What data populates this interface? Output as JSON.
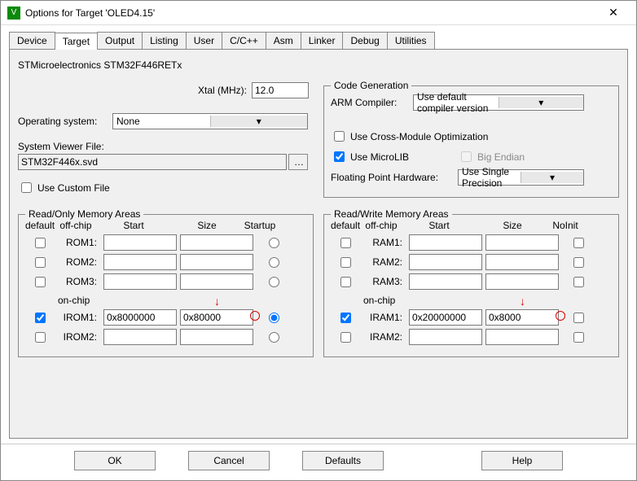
{
  "window": {
    "title": "Options for Target 'OLED4.15'"
  },
  "tabs": [
    "Device",
    "Target",
    "Output",
    "Listing",
    "User",
    "C/C++",
    "Asm",
    "Linker",
    "Debug",
    "Utilities"
  ],
  "activeTab": "Target",
  "device": "STMicroelectronics STM32F446RETx",
  "xtal": {
    "label": "Xtal (MHz):",
    "value": "12.0"
  },
  "os": {
    "label": "Operating system:",
    "value": "None"
  },
  "svd": {
    "label": "System Viewer File:",
    "value": "STM32F446x.svd",
    "useCustom": "Use Custom File"
  },
  "codegen": {
    "legend": "Code Generation",
    "compilerLabel": "ARM Compiler:",
    "compilerValue": "Use default compiler version",
    "crossOpt": "Use Cross-Module Optimization",
    "microlib": "Use MicroLIB",
    "bigEndian": "Big Endian",
    "fpLabel": "Floating Point Hardware:",
    "fpValue": "Use Single Precision"
  },
  "readonly": {
    "legend": "Read/Only Memory Areas",
    "headers": {
      "default": "default",
      "offchip": "off-chip",
      "start": "Start",
      "size": "Size",
      "startup": "Startup"
    },
    "onchip": "on-chip",
    "rows_off": [
      {
        "name": "ROM1:",
        "start": "",
        "size": "",
        "checked": false
      },
      {
        "name": "ROM2:",
        "start": "",
        "size": "",
        "checked": false
      },
      {
        "name": "ROM3:",
        "start": "",
        "size": "",
        "checked": false
      }
    ],
    "rows_on": [
      {
        "name": "IROM1:",
        "start": "0x8000000",
        "size": "0x80000",
        "checked": true,
        "startup": true
      },
      {
        "name": "IROM2:",
        "start": "",
        "size": "",
        "checked": false
      }
    ]
  },
  "readwrite": {
    "legend": "Read/Write Memory Areas",
    "headers": {
      "default": "default",
      "offchip": "off-chip",
      "start": "Start",
      "size": "Size",
      "noinit": "NoInit"
    },
    "onchip": "on-chip",
    "rows_off": [
      {
        "name": "RAM1:",
        "start": "",
        "size": "",
        "checked": false
      },
      {
        "name": "RAM2:",
        "start": "",
        "size": "",
        "checked": false
      },
      {
        "name": "RAM3:",
        "start": "",
        "size": "",
        "checked": false
      }
    ],
    "rows_on": [
      {
        "name": "IRAM1:",
        "start": "0x20000000",
        "size": "0x8000",
        "checked": true
      },
      {
        "name": "IRAM2:",
        "start": "",
        "size": "",
        "checked": false
      }
    ]
  },
  "buttons": {
    "ok": "OK",
    "cancel": "Cancel",
    "defaults": "Defaults",
    "help": "Help"
  },
  "annotations": {
    "arrow": "↓",
    "circle_char": "0"
  }
}
